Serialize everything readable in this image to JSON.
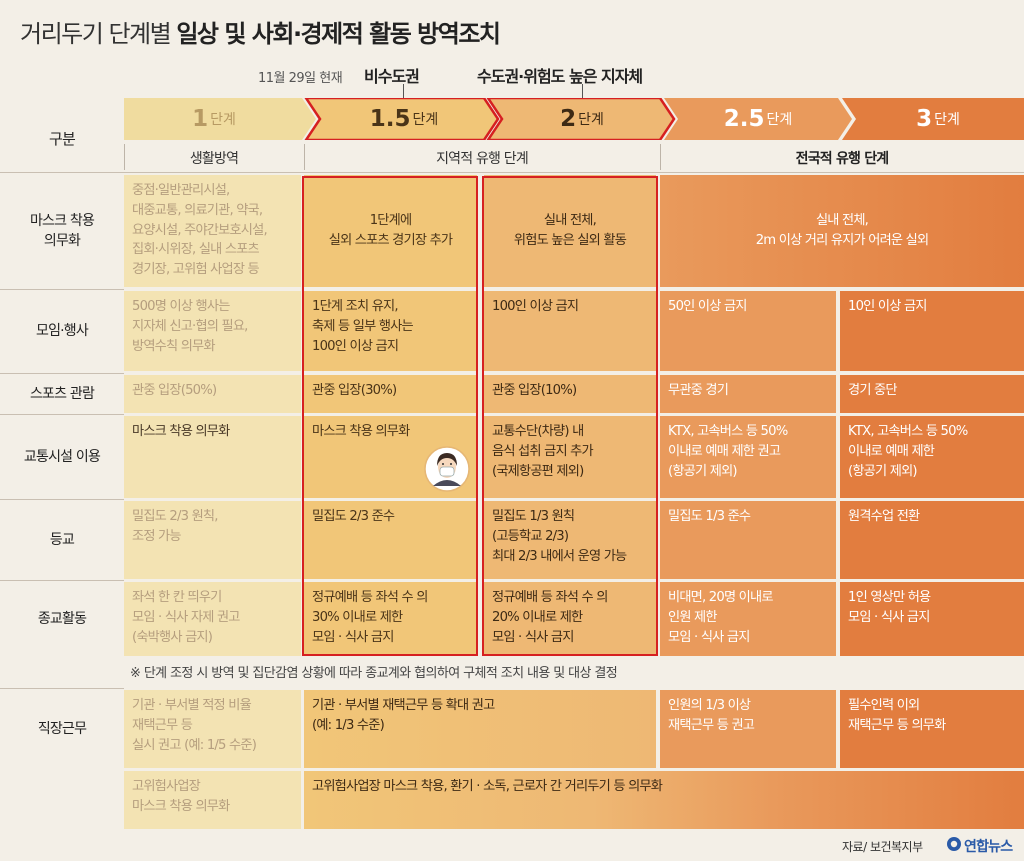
{
  "title": {
    "light": "거리두기 단계별 ",
    "bold": "일상 및 사회·경제적 활동 방역조치"
  },
  "header": {
    "date_note": "11월 29일 현재",
    "current_nonmetro": "비수도권",
    "current_metro": "수도권·위험도 높은 지자체"
  },
  "stages": [
    {
      "num": "1",
      "unit": "단계",
      "color": "#f0dc9f",
      "text_color": "#b79a63"
    },
    {
      "num": "1.5",
      "unit": "단계",
      "color": "#f1c678",
      "text_color": "#4a3418"
    },
    {
      "num": "2",
      "unit": "단계",
      "color": "#eeb874",
      "text_color": "#3e2a14"
    },
    {
      "num": "2.5",
      "unit": "단계",
      "color": "#e99a5c",
      "text_color": "#ffffff"
    },
    {
      "num": "3",
      "unit": "단계",
      "color": "#e27d3f",
      "text_color": "#ffffff"
    }
  ],
  "category_header": "구분",
  "phases": {
    "life": "생활방역",
    "regional": "지역적 유행 단계",
    "national": "전국적 유행 단계"
  },
  "rows": {
    "mask": {
      "label": "마스크 착용\n의무화",
      "s1": "중점·일반관리시설,\n대중교통, 의료기관, 약국,\n요양시설, 주야간보호시설,\n집회·시위장, 실내 스포츠\n경기장, 고위험 사업장 등",
      "s15": "1단계에\n실외 스포츠 경기장 추가",
      "s2": "실내 전체,\n위험도 높은 실외 활동",
      "s25_3": "실내 전체,\n2m 이상 거리 유지가 어려운 실외"
    },
    "gathering": {
      "label": "모임·행사",
      "s1": "500명 이상 행사는\n지자체 신고·협의 필요,\n방역수칙 의무화",
      "s15": "1단계 조치 유지,\n축제 등 일부 행사는\n100인 이상 금지",
      "s2": "100인 이상 금지",
      "s25": "50인 이상 금지",
      "s3": "10인 이상 금지"
    },
    "sports": {
      "label": "스포츠 관람",
      "s1": "관중 입장(50%)",
      "s15": "관중 입장(30%)",
      "s2": "관중 입장(10%)",
      "s25": "무관중 경기",
      "s3": "경기 중단"
    },
    "transport": {
      "label": "교통시설 이용",
      "s1": "마스크 착용 의무화",
      "s15": "마스크 착용 의무화",
      "s2": "교통수단(차량) 내\n음식 섭취 금지 추가\n(국제항공편 제외)",
      "s25": "KTX, 고속버스 등 50%\n이내로 예매 제한 권고\n(항공기 제외)",
      "s3": "KTX, 고속버스 등 50%\n이내로 예매 제한\n(항공기 제외)"
    },
    "school": {
      "label": "등교",
      "s1": "밀집도 2/3 원칙,\n조정 가능",
      "s15": "밀집도 2/3 준수",
      "s2": "밀집도 1/3 원칙\n(고등학교 2/3)\n최대 2/3 내에서 운영 가능",
      "s25": "밀집도 1/3 준수",
      "s3": "원격수업 전환"
    },
    "religion": {
      "label": "종교활동",
      "s1": "좌석 한 칸 띄우기\n모임 · 식사 자제 권고\n(숙박행사 금지)",
      "s15": "정규예배 등 좌석 수 의\n30% 이내로 제한\n모임 · 식사 금지",
      "s2": "정규예배 등 좌석 수 의\n20% 이내로 제한\n모임 · 식사 금지",
      "s25": "비대면, 20명 이내로\n인원 제한\n모임 · 식사 금지",
      "s3": "1인 영상만 허용\n모임 · 식사 금지"
    },
    "work": {
      "label": "직장근무",
      "s1": "기관 · 부서별 적정 비율\n재택근무 등\n실시 권고 (예: 1/5 수준)",
      "s15_2": "기관 · 부서별 재택근무 등 확대 권고\n(예: 1/3 수준)",
      "s25": "인원의 1/3 이상\n재택근무 등 권고",
      "s3": "필수인력 이외\n재택근무 등 의무화",
      "high_s1": "고위험사업장\n마스크 착용 의무화",
      "high_rest": "고위험사업장 마스크 착용, 환기 · 소독, 근로자 간 거리두기 등 의무화"
    }
  },
  "footnote": "※ 단계 조정 시 방역 및 집단감염 상황에 따라 종교계와 협의하여 구체적 조치 내용 및 대상 결정",
  "source": "자료/ 보건복지부",
  "logo": "연합뉴스",
  "colors": {
    "highlight_red": "#d62021",
    "stage1": "#f3e3b3",
    "stage15": "#f1c678",
    "stage2": "#eeb874",
    "stage25": "#e99a5c",
    "stage3": "#e27d3f"
  },
  "icons": {
    "mask_person": "person-with-mask-icon",
    "logo": "yonhap-logo-icon"
  }
}
